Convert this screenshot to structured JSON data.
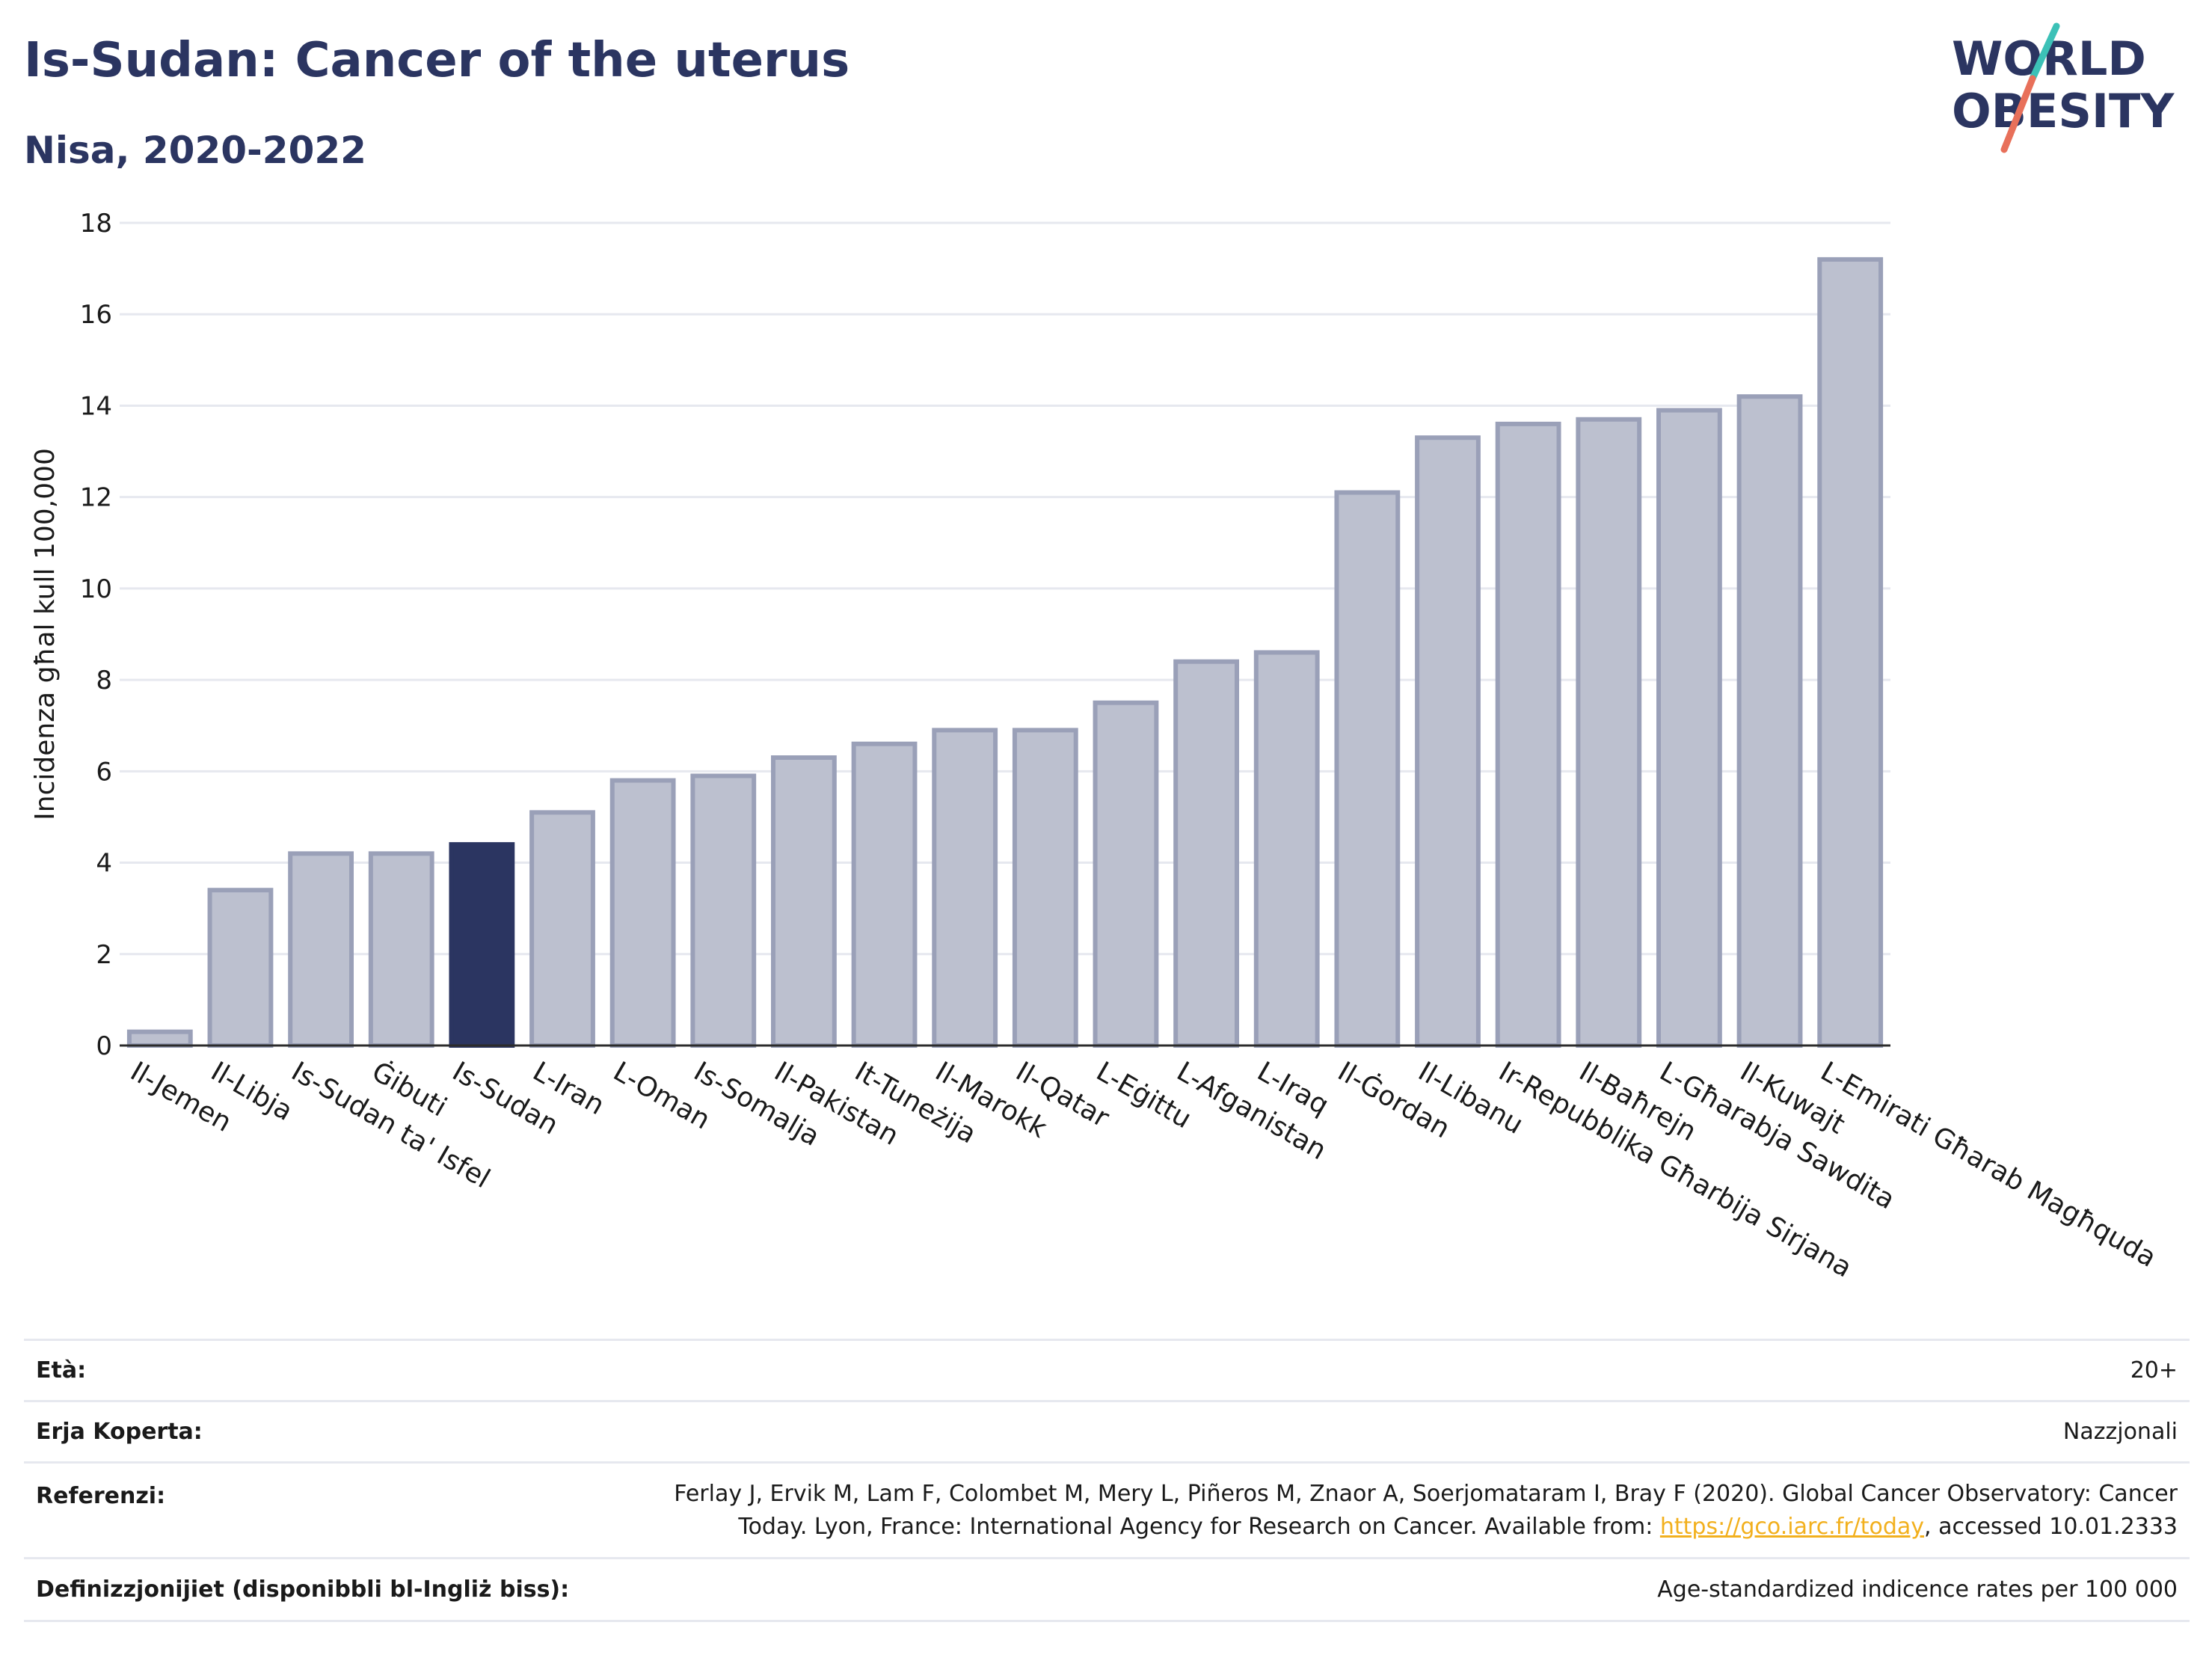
{
  "header": {
    "title": "Is-Sudan: Cancer of the uterus",
    "subtitle": "Nisa, 2020-2022"
  },
  "logo": {
    "line1": "WORLD",
    "line2": "OBESITY",
    "accent_teal": "#3cc1b7",
    "accent_red": "#e8705a"
  },
  "colors": {
    "bar_default": "#bcc0cf",
    "bar_border": "#9aa0b8",
    "bar_highlight": "#2b3561",
    "grid": "#e6e8ef",
    "axis": "#2b2b2b"
  },
  "chart_data": {
    "type": "bar",
    "ylabel": "Incidenza għal kull 100,000",
    "ylim": [
      0,
      18
    ],
    "yticks": [
      0,
      2,
      4,
      6,
      8,
      10,
      12,
      14,
      16,
      18
    ],
    "grid": true,
    "highlight": "Is-Sudan",
    "categories": [
      "Il-Jemen",
      "Il-Libja",
      "Is-Sudan ta' Isfel",
      "Ġibuti",
      "Is-Sudan",
      "L-Iran",
      "L-Oman",
      "Is-Somalja",
      "Il-Pakistan",
      "It-Tuneżija",
      "Il-Marokk",
      "Il-Qatar",
      "L-Eġittu",
      "L-Afganistan",
      "L-Iraq",
      "Il-Ġordan",
      "Il-Libanu",
      "Ir-Repubblika Għarbija Sirjana",
      "Il-Baħrejn",
      "L-Għarabja Sawdita",
      "Il-Kuwajt",
      "L-Emirati Għarab Magħquda"
    ],
    "values": [
      0.3,
      3.4,
      4.2,
      4.2,
      4.4,
      5.1,
      5.8,
      5.9,
      6.3,
      6.6,
      6.9,
      6.9,
      7.5,
      8.4,
      8.6,
      12.1,
      13.3,
      13.6,
      13.7,
      13.9,
      14.2,
      17.2
    ]
  },
  "info": {
    "age_label": "Età:",
    "age_value": "20+",
    "coverage_label": "Erja Koperta:",
    "coverage_value": "Nazzjonali",
    "references_label": "Referenzi:",
    "references_line1": "Ferlay J, Ervik M, Lam F, Colombet M, Mery L, Piñeros M, Znaor A, Soerjomataram I, Bray F (2020). Global Cancer Observatory: Cancer",
    "references_line2a": "Today. Lyon, France: International Agency for Research on Cancer. Available from: ",
    "references_link": "https://gco.iarc.fr/today",
    "references_line2b": ", accessed 10.01.2333",
    "definitions_label": "Definizzjonijiet (disponibbli bl-Ingliż biss):",
    "definitions_value": "Age-standardized indicence rates per 100 000"
  }
}
